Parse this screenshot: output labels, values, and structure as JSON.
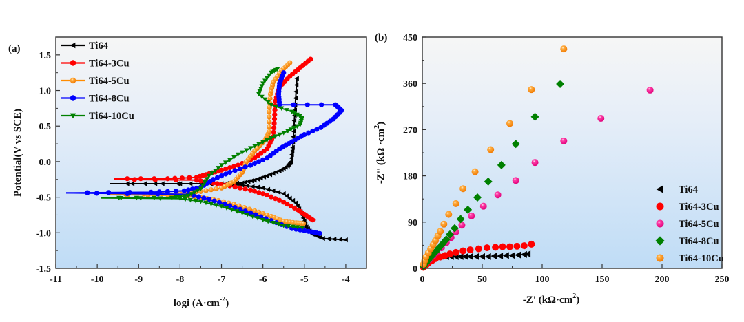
{
  "chart_data": [
    {
      "id": "a",
      "type": "line",
      "panel_label": "(a)",
      "title": "",
      "xlabel": "logi (A·cm⁻²)",
      "xlabel_parts": {
        "main": "logi (A·cm",
        "sup": "-2",
        "end": ")"
      },
      "ylabel": "Potential(V vs SCE)",
      "xlim": [
        -11,
        -3.5
      ],
      "ylim": [
        -1.5,
        1.75
      ],
      "xticks": [
        -11,
        -10,
        -9,
        -8,
        -7,
        -6,
        -5,
        -4
      ],
      "xtick_labels": [
        "-11",
        "-10",
        "-9",
        "-8",
        "-7",
        "-6",
        "-5",
        "-4"
      ],
      "yticks": [
        -1.5,
        -1.0,
        -0.5,
        0.0,
        0.5,
        1.0,
        1.5
      ],
      "ytick_labels": [
        "-1.5",
        "-1.0",
        "-0.5",
        "0.0",
        "0.5",
        "1.0",
        "1.5"
      ],
      "grid": false,
      "legend_position": "top-left",
      "series": [
        {
          "name": "Ti64",
          "color": "#000000",
          "marker": "triangle-left",
          "points": [
            [
              -9.7,
              -0.31
            ],
            [
              -8.0,
              -0.31
            ],
            [
              -7.0,
              -0.31
            ],
            [
              -6.5,
              -0.3
            ],
            [
              -6.2,
              -0.26
            ],
            [
              -5.9,
              -0.2
            ],
            [
              -5.6,
              -0.13
            ],
            [
              -5.4,
              -0.06
            ],
            [
              -5.32,
              0.0
            ],
            [
              -5.28,
              0.2
            ],
            [
              -5.25,
              0.5
            ],
            [
              -5.22,
              0.8
            ],
            [
              -5.18,
              1.17
            ]
          ],
          "points_cathodic": [
            [
              -9.7,
              -0.31
            ],
            [
              -7.5,
              -0.31
            ],
            [
              -6.5,
              -0.33
            ],
            [
              -6.0,
              -0.37
            ],
            [
              -5.5,
              -0.45
            ],
            [
              -5.2,
              -0.58
            ],
            [
              -5.05,
              -0.75
            ],
            [
              -4.95,
              -0.92
            ],
            [
              -4.8,
              -1.02
            ],
            [
              -4.55,
              -1.08
            ],
            [
              -4.0,
              -1.1
            ]
          ]
        },
        {
          "name": "Ti64-3Cu",
          "color": "#ff0000",
          "marker": "circle",
          "points": [
            [
              -9.6,
              -0.24
            ],
            [
              -8.3,
              -0.24
            ],
            [
              -7.6,
              -0.22
            ],
            [
              -7.3,
              -0.17
            ],
            [
              -7.0,
              -0.12
            ],
            [
              -6.6,
              -0.05
            ],
            [
              -6.2,
              0.05
            ],
            [
              -5.9,
              0.18
            ],
            [
              -5.75,
              0.35
            ],
            [
              -5.72,
              0.6
            ],
            [
              -5.7,
              0.85
            ],
            [
              -5.6,
              1.05
            ],
            [
              -5.35,
              1.2
            ],
            [
              -5.1,
              1.32
            ],
            [
              -4.85,
              1.44
            ]
          ],
          "points_cathodic": [
            [
              -9.6,
              -0.25
            ],
            [
              -7.6,
              -0.26
            ],
            [
              -7.2,
              -0.3
            ],
            [
              -6.8,
              -0.34
            ],
            [
              -6.3,
              -0.4
            ],
            [
              -5.9,
              -0.47
            ],
            [
              -5.5,
              -0.57
            ],
            [
              -5.15,
              -0.68
            ],
            [
              -4.95,
              -0.76
            ],
            [
              -4.8,
              -0.82
            ]
          ]
        },
        {
          "name": "Ti64-5Cu",
          "color": "#ff8c00",
          "marker": "circle",
          "points": [
            [
              -9.75,
              -0.46
            ],
            [
              -8.0,
              -0.45
            ],
            [
              -7.5,
              -0.42
            ],
            [
              -7.0,
              -0.37
            ],
            [
              -6.7,
              -0.28
            ],
            [
              -6.5,
              -0.15
            ],
            [
              -6.4,
              0.0
            ],
            [
              -6.2,
              0.15
            ],
            [
              -5.95,
              0.3
            ],
            [
              -5.85,
              0.42
            ],
            [
              -5.85,
              0.7
            ],
            [
              -5.82,
              0.95
            ],
            [
              -5.75,
              1.12
            ],
            [
              -5.55,
              1.28
            ],
            [
              -5.35,
              1.39
            ]
          ],
          "points_cathodic": [
            [
              -9.75,
              -0.46
            ],
            [
              -7.8,
              -0.48
            ],
            [
              -7.2,
              -0.53
            ],
            [
              -6.7,
              -0.6
            ],
            [
              -6.2,
              -0.69
            ],
            [
              -5.8,
              -0.77
            ],
            [
              -5.5,
              -0.84
            ],
            [
              -5.2,
              -0.86
            ],
            [
              -5.02,
              -0.87
            ]
          ]
        },
        {
          "name": "Ti64-8Cu",
          "color": "#0000ff",
          "marker": "circle",
          "points": [
            [
              -10.75,
              -0.44
            ],
            [
              -8.7,
              -0.43
            ],
            [
              -7.9,
              -0.41
            ],
            [
              -7.5,
              -0.36
            ],
            [
              -7.2,
              -0.25
            ],
            [
              -6.8,
              -0.15
            ],
            [
              -6.3,
              -0.05
            ],
            [
              -5.9,
              0.05
            ],
            [
              -5.6,
              0.18
            ],
            [
              -5.3,
              0.28
            ],
            [
              -5.0,
              0.38
            ],
            [
              -4.6,
              0.48
            ],
            [
              -4.3,
              0.6
            ],
            [
              -4.1,
              0.72
            ],
            [
              -4.25,
              0.8
            ],
            [
              -5.6,
              0.8
            ],
            [
              -5.62,
              0.95
            ],
            [
              -5.6,
              1.1
            ],
            [
              -5.5,
              1.25
            ]
          ],
          "points_cathodic": [
            [
              -10.75,
              -0.44
            ],
            [
              -7.8,
              -0.46
            ],
            [
              -7.3,
              -0.53
            ],
            [
              -6.8,
              -0.62
            ],
            [
              -6.3,
              -0.72
            ],
            [
              -5.8,
              -0.83
            ],
            [
              -5.3,
              -0.94
            ],
            [
              -4.9,
              -0.98
            ],
            [
              -4.63,
              -1.01
            ]
          ]
        },
        {
          "name": "Ti64-10Cu",
          "color": "#008000",
          "marker": "triangle-down",
          "points": [
            [
              -9.9,
              -0.51
            ],
            [
              -8.2,
              -0.51
            ],
            [
              -7.8,
              -0.48
            ],
            [
              -7.5,
              -0.38
            ],
            [
              -7.3,
              -0.2
            ],
            [
              -7.0,
              -0.05
            ],
            [
              -6.6,
              0.1
            ],
            [
              -6.2,
              0.22
            ],
            [
              -5.8,
              0.33
            ],
            [
              -5.4,
              0.43
            ],
            [
              -5.1,
              0.52
            ],
            [
              -5.05,
              0.62
            ],
            [
              -5.3,
              0.7
            ],
            [
              -5.8,
              0.8
            ],
            [
              -6.1,
              0.95
            ],
            [
              -6.0,
              1.1
            ],
            [
              -5.8,
              1.25
            ],
            [
              -5.65,
              1.3
            ]
          ],
          "points_cathodic": [
            [
              -9.9,
              -0.51
            ],
            [
              -8.0,
              -0.52
            ],
            [
              -7.5,
              -0.56
            ],
            [
              -7.0,
              -0.63
            ],
            [
              -6.5,
              -0.72
            ],
            [
              -6.0,
              -0.82
            ],
            [
              -5.5,
              -0.9
            ],
            [
              -5.05,
              -0.93
            ]
          ]
        }
      ]
    },
    {
      "id": "b",
      "type": "scatter",
      "panel_label": "(b)",
      "title": "",
      "xlabel": "-Z' (kΩ·cm²)",
      "xlabel_parts": {
        "main": "-Z'   (kΩ·cm",
        "sup": "2",
        "end": ")"
      },
      "ylabel": "-Z'' (kΩ·cm²)",
      "ylabel_parts": {
        "main": "-Z'' (kΩ ·cm",
        "sup": "2",
        "end": ")"
      },
      "xlim": [
        0,
        250
      ],
      "ylim": [
        0,
        450
      ],
      "xticks": [
        0,
        50,
        100,
        150,
        200,
        250
      ],
      "xtick_labels": [
        "0",
        "50",
        "100",
        "150",
        "200",
        "250"
      ],
      "yticks": [
        0,
        90,
        180,
        270,
        360,
        450
      ],
      "ytick_labels": [
        "0",
        "90",
        "180",
        "270",
        "360",
        "450"
      ],
      "grid": false,
      "legend_position": "bottom-right",
      "series": [
        {
          "name": "Ti64",
          "color": "#000000",
          "marker": "triangle-left",
          "points": [
            [
              1,
              3
            ],
            [
              2,
              8
            ],
            [
              3,
              12
            ],
            [
              5,
              16
            ],
            [
              7,
              19
            ],
            [
              10,
              21
            ],
            [
              13,
              22
            ],
            [
              16,
              23
            ],
            [
              20,
              23
            ],
            [
              24,
              23
            ],
            [
              28,
              23
            ],
            [
              32,
              23
            ],
            [
              36,
              23
            ],
            [
              40,
              23
            ],
            [
              45,
              23
            ],
            [
              50,
              23
            ],
            [
              55,
              23
            ],
            [
              60,
              24
            ],
            [
              65,
              24
            ],
            [
              70,
              25
            ],
            [
              75,
              25
            ],
            [
              80,
              26
            ],
            [
              85,
              27
            ],
            [
              88,
              28
            ]
          ]
        },
        {
          "name": "Ti64-3Cu",
          "color": "#ff0000",
          "marker": "circle",
          "points": [
            [
              1,
              2
            ],
            [
              3,
              6
            ],
            [
              5,
              10
            ],
            [
              8,
              15
            ],
            [
              11,
              19
            ],
            [
              15,
              22
            ],
            [
              19,
              25
            ],
            [
              23,
              28
            ],
            [
              28,
              31
            ],
            [
              34,
              34
            ],
            [
              40,
              36
            ],
            [
              47,
              38
            ],
            [
              54,
              40
            ],
            [
              61,
              41
            ],
            [
              67,
              42
            ],
            [
              73,
              42
            ],
            [
              79,
              43
            ],
            [
              85,
              44
            ],
            [
              91,
              47
            ]
          ]
        },
        {
          "name": "Ti64-5Cu",
          "color": "#ff1493",
          "marker": "circle",
          "points": [
            [
              1,
              5
            ],
            [
              3,
              10
            ],
            [
              6,
              17
            ],
            [
              9,
              24
            ],
            [
              12,
              31
            ],
            [
              16,
              40
            ],
            [
              20,
              50
            ],
            [
              24,
              60
            ],
            [
              28,
              71
            ],
            [
              33,
              84
            ],
            [
              41,
              102
            ],
            [
              51,
              121
            ],
            [
              63,
              143
            ],
            [
              78,
              171
            ],
            [
              94,
              206
            ],
            [
              118,
              248
            ],
            [
              149,
              292
            ],
            [
              190,
              347
            ]
          ]
        },
        {
          "name": "Ti64-8Cu",
          "color": "#008000",
          "marker": "diamond",
          "points": [
            [
              1,
              4
            ],
            [
              3,
              10
            ],
            [
              5,
              16
            ],
            [
              8,
              24
            ],
            [
              11,
              32
            ],
            [
              14,
              40
            ],
            [
              17,
              48
            ],
            [
              20,
              56
            ],
            [
              23,
              66
            ],
            [
              27,
              78
            ],
            [
              32,
              96
            ],
            [
              38,
              114
            ],
            [
              46,
              138
            ],
            [
              55,
              169
            ],
            [
              66,
              201
            ],
            [
              78,
              242
            ],
            [
              94,
              295
            ],
            [
              115,
              359
            ]
          ]
        },
        {
          "name": "Ti64-10Cu",
          "color": "#ff8c00",
          "marker": "circle",
          "points": [
            [
              1,
              8
            ],
            [
              2,
              15
            ],
            [
              3,
              22
            ],
            [
              5,
              30
            ],
            [
              7,
              38
            ],
            [
              9,
              46
            ],
            [
              11,
              54
            ],
            [
              13,
              63
            ],
            [
              15,
              72
            ],
            [
              18,
              86
            ],
            [
              22,
              105
            ],
            [
              28,
              126
            ],
            [
              34,
              155
            ],
            [
              44,
              188
            ],
            [
              57,
              231
            ],
            [
              73,
              282
            ],
            [
              91,
              348
            ],
            [
              118,
              427
            ]
          ]
        }
      ]
    }
  ]
}
